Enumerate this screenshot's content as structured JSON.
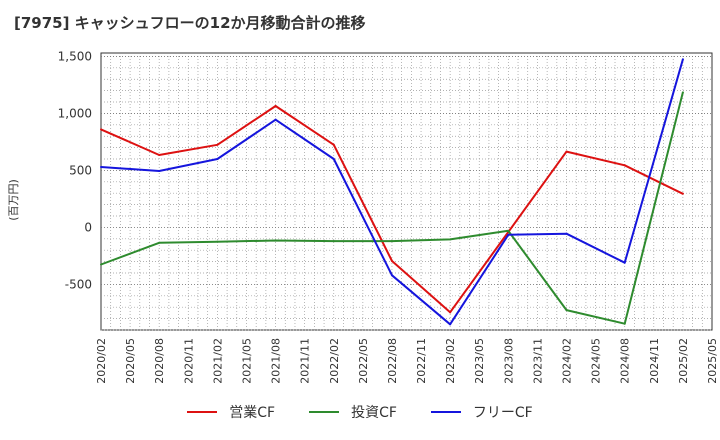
{
  "chart_data": {
    "type": "line",
    "title": "[7975]  キャッシュフローの12か月移動合計の推移",
    "xlabel": "",
    "ylabel": "(百万円)",
    "ylim": [
      -900,
      1530
    ],
    "yticks": [
      -500,
      0,
      500,
      1000,
      1500
    ],
    "ytick_labels": [
      "-500",
      "0",
      "500",
      "1,000",
      "1,500"
    ],
    "xticks": [
      "2020/02",
      "2020/05",
      "2020/08",
      "2020/11",
      "2021/02",
      "2021/05",
      "2021/08",
      "2021/11",
      "2022/02",
      "2022/05",
      "2022/08",
      "2022/11",
      "2023/02",
      "2023/05",
      "2023/08",
      "2023/11",
      "2024/02",
      "2024/05",
      "2024/08",
      "2024/11",
      "2025/02",
      "2025/05"
    ],
    "x": [
      "2020/02",
      "2020/08",
      "2021/02",
      "2021/08",
      "2022/02",
      "2022/08",
      "2023/02",
      "2023/08",
      "2024/02",
      "2024/08",
      "2025/02"
    ],
    "series": [
      {
        "name": "営業CF",
        "color": "#dd1111",
        "values": [
          860,
          635,
          725,
          1065,
          725,
          -295,
          -745,
          -40,
          665,
          545,
          295
        ]
      },
      {
        "name": "投資CF",
        "color": "#2e8b2e",
        "values": [
          -325,
          -135,
          -125,
          -115,
          -120,
          -120,
          -105,
          -30,
          -725,
          -845,
          1185
        ]
      },
      {
        "name": "フリーCF",
        "color": "#1515dd",
        "values": [
          530,
          495,
          600,
          945,
          600,
          -420,
          -850,
          -65,
          -55,
          -310,
          1475
        ]
      }
    ],
    "grid": true,
    "legend": "bottom"
  }
}
